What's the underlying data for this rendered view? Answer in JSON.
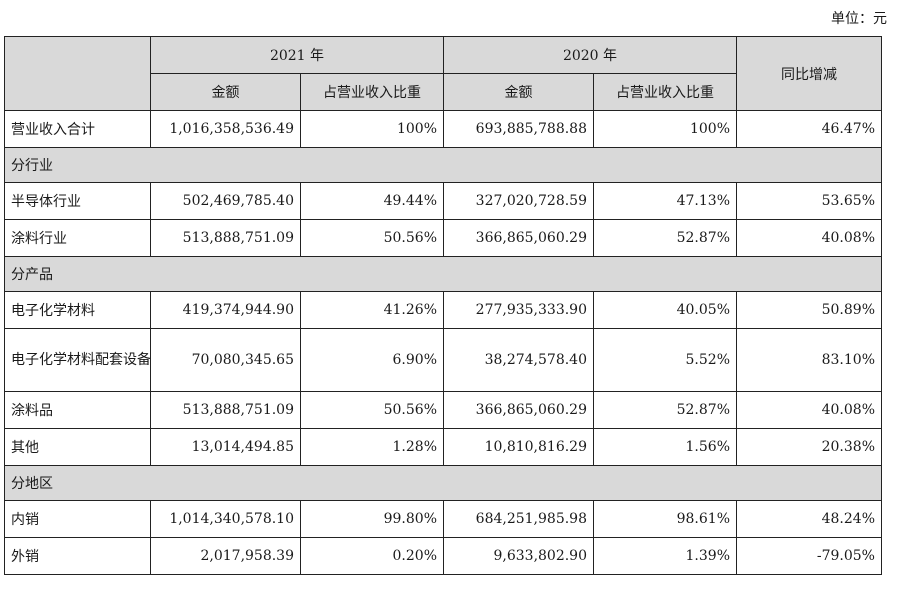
{
  "unit_label": "单位：元",
  "header": {
    "year_2021": "2021 年",
    "year_2020": "2020 年",
    "yoy": "同比增减",
    "amount": "金额",
    "share": "占营业收入比重"
  },
  "rows": [
    {
      "label": "营业收入合计",
      "a2021": "1,016,358,536.49",
      "s2021": "100%",
      "a2020": "693,885,788.88",
      "s2020": "100%",
      "yoy": "46.47%"
    },
    {
      "section": "分行业"
    },
    {
      "label": "半导体行业",
      "a2021": "502,469,785.40",
      "s2021": "49.44%",
      "a2020": "327,020,728.59",
      "s2020": "47.13%",
      "yoy": "53.65%"
    },
    {
      "label": "涂料行业",
      "a2021": "513,888,751.09",
      "s2021": "50.56%",
      "a2020": "366,865,060.29",
      "s2020": "52.87%",
      "yoy": "40.08%"
    },
    {
      "section": "分产品"
    },
    {
      "label": "电子化学材料",
      "a2021": "419,374,944.90",
      "s2021": "41.26%",
      "a2020": "277,935,333.90",
      "s2020": "40.05%",
      "yoy": "50.89%"
    },
    {
      "label": "电子化学材料配套设备",
      "a2021": "70,080,345.65",
      "s2021": "6.90%",
      "a2020": "38,274,578.40",
      "s2020": "5.52%",
      "yoy": "83.10%"
    },
    {
      "label": "涂料品",
      "a2021": "513,888,751.09",
      "s2021": "50.56%",
      "a2020": "366,865,060.29",
      "s2020": "52.87%",
      "yoy": "40.08%"
    },
    {
      "label": "其他",
      "a2021": "13,014,494.85",
      "s2021": "1.28%",
      "a2020": "10,810,816.29",
      "s2020": "1.56%",
      "yoy": "20.38%"
    },
    {
      "section": "分地区"
    },
    {
      "label": "内销",
      "a2021": "1,014,340,578.10",
      "s2021": "99.80%",
      "a2020": "684,251,985.98",
      "s2020": "98.61%",
      "yoy": "48.24%"
    },
    {
      "label": "外销",
      "a2021": "2,017,958.39",
      "s2021": "0.20%",
      "a2020": "9,633,802.90",
      "s2020": "1.39%",
      "yoy": "-79.05%"
    }
  ]
}
